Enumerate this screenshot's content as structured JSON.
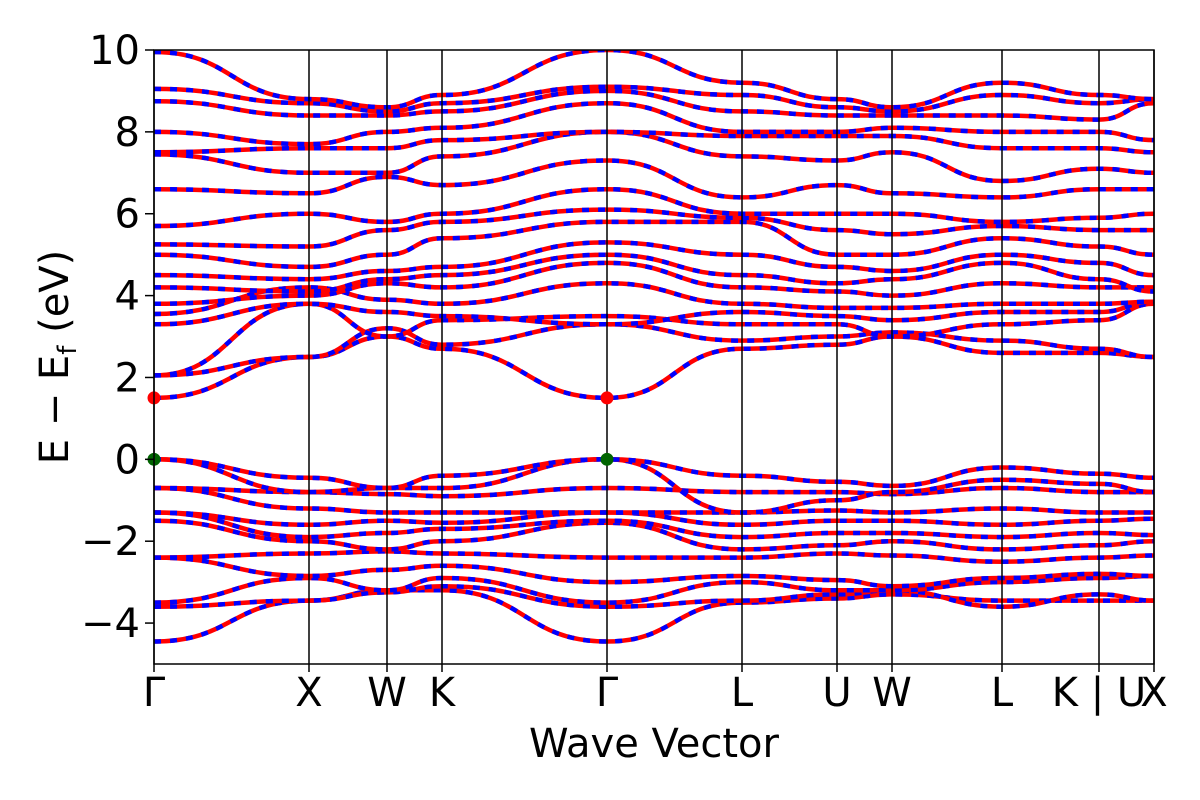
{
  "chart_data": {
    "type": "line",
    "xlabel": "Wave Vector",
    "ylabel": "E − E",
    "ylabel_sub": "f",
    "ylabel_unit": " (eV)",
    "ylim": [
      -5,
      10
    ],
    "yticks": [
      -4,
      -2,
      0,
      2,
      4,
      6,
      8,
      10
    ],
    "ytick_labels": [
      "−4",
      "−2",
      "0",
      "2",
      "4",
      "6",
      "8",
      "10"
    ],
    "xlim": [
      0,
      1
    ],
    "high_symmetry_points": [
      {
        "label": "Γ",
        "x": 0.0
      },
      {
        "label": "X",
        "x": 0.155
      },
      {
        "label": "W",
        "x": 0.233
      },
      {
        "label": "K",
        "x": 0.288
      },
      {
        "label": "Γ",
        "x": 0.453
      },
      {
        "label": "L",
        "x": 0.588
      },
      {
        "label": "U",
        "x": 0.683
      },
      {
        "label": "W",
        "x": 0.738
      },
      {
        "label": "L",
        "x": 0.848
      },
      {
        "label": "K | U",
        "x": 0.945
      },
      {
        "label": "X",
        "x": 1.0
      }
    ],
    "line_colors": {
      "spin_up": "#ff0000",
      "spin_down": "#0000ff"
    },
    "band_extrema_markers": [
      {
        "name": "CBM",
        "x": 0.0,
        "y": 1.5,
        "color": "#ff0000"
      },
      {
        "name": "CBM",
        "x": 0.453,
        "y": 1.5,
        "color": "#ff0000"
      },
      {
        "name": "VBM",
        "x": 0.0,
        "y": 0.0,
        "color": "#006400"
      },
      {
        "name": "VBM",
        "x": 0.453,
        "y": 0.0,
        "color": "#006400"
      }
    ],
    "series": [
      {
        "values": [
          -4.45,
          -3.45,
          -3.2,
          -3.2,
          -4.45,
          -3.5,
          -3.4,
          -3.3,
          -3.45,
          -3.45,
          -3.45
        ]
      },
      {
        "values": [
          -3.6,
          -3.45,
          -3.25,
          -3.1,
          -3.6,
          -3.45,
          -3.3,
          -3.2,
          -3.6,
          -3.3,
          -3.45
        ]
      },
      {
        "values": [
          -3.5,
          -2.9,
          -3.2,
          -2.9,
          -3.5,
          -3.0,
          -3.2,
          -3.2,
          -3.0,
          -2.9,
          -2.85
        ]
      },
      {
        "values": [
          -2.4,
          -2.85,
          -2.7,
          -2.6,
          -3.0,
          -2.85,
          -2.95,
          -3.1,
          -2.9,
          -2.8,
          -2.85
        ]
      },
      {
        "values": [
          -2.4,
          -2.3,
          -2.25,
          -2.3,
          -2.4,
          -2.4,
          -2.3,
          -2.35,
          -2.5,
          -2.4,
          -2.35
        ]
      },
      {
        "values": [
          -1.5,
          -2.0,
          -2.2,
          -2.0,
          -1.55,
          -2.2,
          -2.1,
          -2.0,
          -2.2,
          -2.1,
          -2.0
        ]
      },
      {
        "values": [
          -1.3,
          -1.9,
          -1.8,
          -1.7,
          -1.5,
          -1.9,
          -1.8,
          -1.8,
          -1.9,
          -1.8,
          -1.85
        ]
      },
      {
        "values": [
          -1.3,
          -1.6,
          -1.5,
          -1.55,
          -1.3,
          -1.6,
          -1.5,
          -1.5,
          -1.6,
          -1.5,
          -1.45
        ]
      },
      {
        "values": [
          -0.7,
          -1.2,
          -1.3,
          -1.3,
          -1.3,
          -1.3,
          -1.25,
          -1.3,
          -1.2,
          -1.3,
          -1.3
        ]
      },
      {
        "values": [
          -0.7,
          -0.8,
          -0.85,
          -0.9,
          -0.7,
          -0.8,
          -0.8,
          -0.85,
          -0.7,
          -0.8,
          -0.8
        ]
      },
      {
        "values": [
          0.0,
          -0.8,
          -0.7,
          -0.7,
          0.0,
          -1.3,
          -1.0,
          -0.8,
          -0.5,
          -0.6,
          -0.8
        ]
      },
      {
        "values": [
          0.0,
          -0.45,
          -0.7,
          -0.4,
          0.0,
          -0.4,
          -0.55,
          -0.65,
          -0.2,
          -0.35,
          -0.45
        ]
      },
      {
        "values": [
          1.5,
          2.5,
          3.0,
          2.7,
          1.5,
          2.7,
          2.8,
          3.0,
          2.6,
          2.6,
          2.5
        ]
      },
      {
        "values": [
          2.05,
          2.5,
          3.2,
          2.8,
          3.3,
          2.9,
          3.0,
          3.1,
          2.9,
          2.7,
          2.5
        ]
      },
      {
        "values": [
          2.05,
          3.8,
          3.0,
          3.4,
          3.5,
          3.3,
          3.3,
          3.0,
          3.3,
          3.4,
          3.8
        ]
      },
      {
        "values": [
          3.3,
          3.8,
          3.6,
          3.5,
          3.3,
          3.6,
          3.5,
          3.4,
          3.6,
          3.6,
          3.85
        ]
      },
      {
        "values": [
          3.55,
          4.2,
          3.9,
          3.8,
          4.3,
          3.8,
          3.7,
          3.7,
          3.8,
          3.8,
          3.85
        ]
      },
      {
        "values": [
          3.8,
          4.0,
          4.3,
          4.2,
          4.8,
          4.2,
          4.1,
          4.0,
          4.3,
          4.2,
          4.2
        ]
      },
      {
        "values": [
          4.2,
          4.1,
          4.4,
          4.5,
          5.0,
          4.5,
          4.3,
          4.4,
          4.8,
          4.4,
          4.1
        ]
      },
      {
        "values": [
          4.5,
          4.4,
          4.6,
          4.7,
          5.3,
          5.0,
          4.7,
          4.6,
          5.0,
          4.8,
          4.5
        ]
      },
      {
        "values": [
          5.0,
          4.7,
          5.0,
          5.4,
          5.8,
          5.8,
          5.0,
          5.0,
          5.4,
          5.2,
          5.0
        ]
      },
      {
        "values": [
          5.25,
          5.2,
          5.6,
          5.8,
          6.1,
          5.9,
          5.6,
          5.5,
          5.7,
          5.6,
          5.6
        ]
      },
      {
        "values": [
          5.7,
          6.0,
          5.8,
          6.0,
          6.6,
          6.0,
          6.0,
          6.0,
          5.8,
          5.9,
          6.0
        ]
      },
      {
        "values": [
          6.6,
          6.5,
          6.9,
          6.7,
          7.3,
          6.4,
          6.7,
          6.5,
          6.4,
          6.6,
          6.6
        ]
      },
      {
        "values": [
          7.45,
          7.0,
          7.0,
          7.4,
          8.0,
          7.4,
          7.3,
          7.5,
          6.8,
          7.1,
          7.0
        ]
      },
      {
        "values": [
          7.5,
          7.6,
          7.6,
          7.8,
          8.0,
          7.9,
          7.9,
          7.9,
          7.6,
          7.6,
          7.5
        ]
      },
      {
        "values": [
          8.0,
          7.7,
          8.0,
          8.1,
          8.7,
          8.0,
          8.0,
          8.1,
          8.0,
          8.0,
          7.8
        ]
      },
      {
        "values": [
          8.75,
          8.4,
          8.4,
          8.5,
          9.0,
          8.5,
          8.4,
          8.4,
          8.4,
          8.3,
          8.7
        ]
      },
      {
        "values": [
          9.05,
          8.7,
          8.5,
          8.7,
          9.1,
          8.9,
          8.6,
          8.5,
          8.9,
          8.7,
          8.8
        ]
      },
      {
        "values": [
          9.95,
          8.8,
          8.6,
          8.9,
          10.0,
          9.2,
          8.8,
          8.6,
          9.2,
          8.9,
          8.8
        ]
      }
    ]
  }
}
